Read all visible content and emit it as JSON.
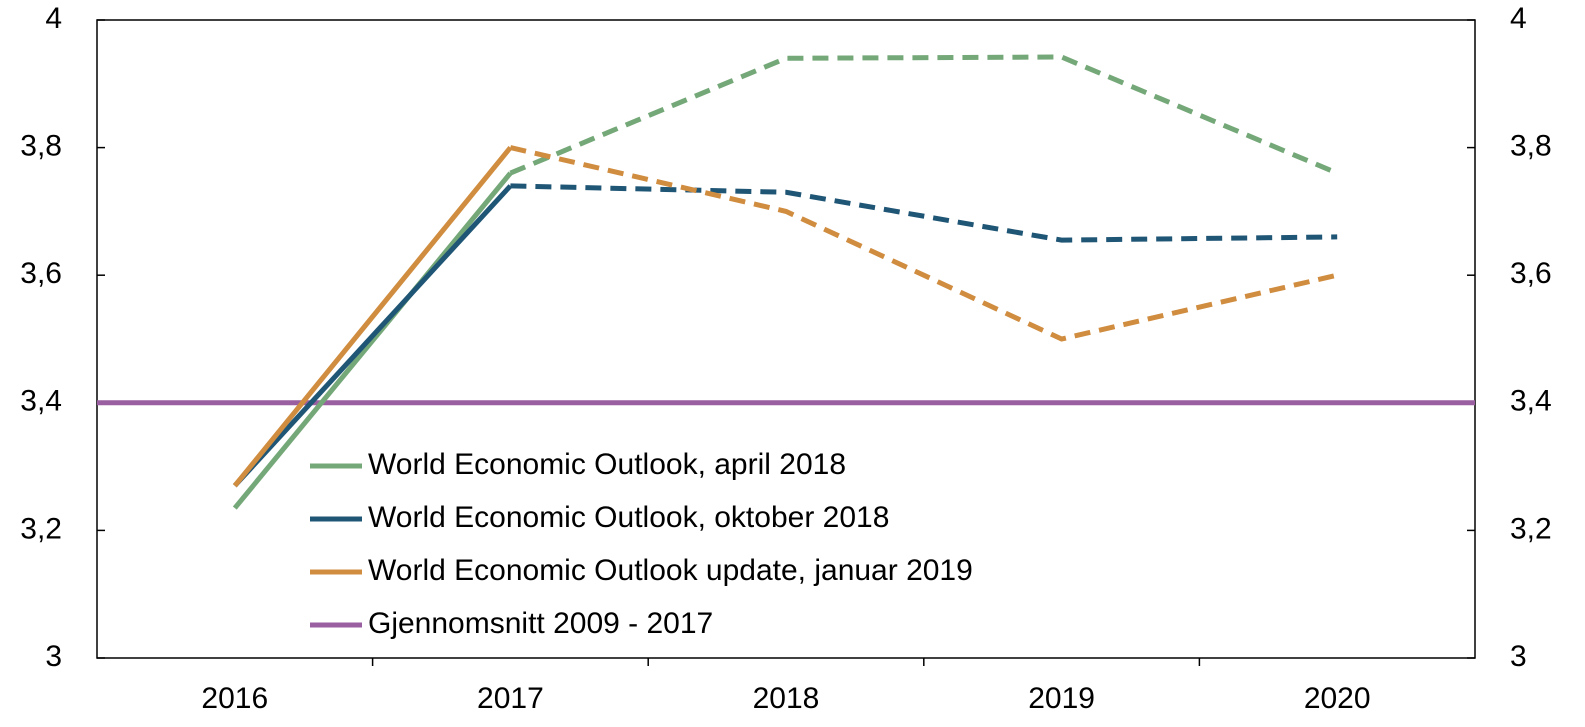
{
  "chart_data": {
    "type": "line",
    "categories": [
      "2016",
      "2017",
      "2018",
      "2019",
      "2020"
    ],
    "series": [
      {
        "name": "World Economic Outlook, april 2018",
        "color": "#75a878",
        "values": [
          3.235,
          3.76,
          3.94,
          3.942,
          3.76
        ]
      },
      {
        "name": "World Economic Outlook, oktober 2018",
        "color": "#1f5575",
        "values": [
          3.27,
          3.74,
          3.73,
          3.655,
          3.66
        ]
      },
      {
        "name": "World Economic Outlook update, januar 2019",
        "color": "#d08c3f",
        "values": [
          3.27,
          3.8,
          3.7,
          3.5,
          3.6
        ]
      }
    ],
    "dash_from": 1,
    "reference_line": {
      "name": "Gjennomsnitt 2009 - 2017",
      "color": "#9a5fa0",
      "value": 3.4
    },
    "ylim": [
      3,
      4
    ],
    "yticks": [
      3,
      {
        "value": 3.2,
        "label": "3,2"
      },
      {
        "value": 3.4,
        "label": "3,4"
      },
      {
        "value": 3.6,
        "label": "3,6"
      },
      {
        "value": 3.8,
        "label": "3,8"
      },
      4
    ],
    "y2lim": [
      3,
      4
    ],
    "y2ticks": [
      3,
      {
        "value": 3.2,
        "label": "3,2"
      },
      {
        "value": 3.4,
        "label": "3,4"
      },
      {
        "value": 3.6,
        "label": "3,6"
      },
      {
        "value": 3.8,
        "label": "3,8"
      },
      4
    ]
  }
}
